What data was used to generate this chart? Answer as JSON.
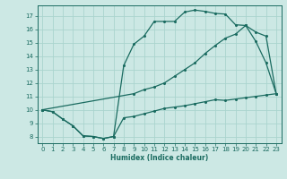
{
  "title": "",
  "xlabel": "Humidex (Indice chaleur)",
  "bg_color": "#cce8e4",
  "grid_color": "#aad4ce",
  "line_color": "#1a6b60",
  "xlim": [
    -0.5,
    23.5
  ],
  "ylim": [
    7.5,
    17.8
  ],
  "xticks": [
    0,
    1,
    2,
    3,
    4,
    5,
    6,
    7,
    8,
    9,
    10,
    11,
    12,
    13,
    14,
    15,
    16,
    17,
    18,
    19,
    20,
    21,
    22,
    23
  ],
  "yticks": [
    8,
    9,
    10,
    11,
    12,
    13,
    14,
    15,
    16,
    17
  ],
  "curve1_x": [
    0,
    1,
    2,
    3,
    4,
    5,
    6,
    7,
    8,
    9,
    10,
    11,
    12,
    13,
    14,
    15,
    16,
    17,
    18,
    19,
    20,
    21,
    22,
    23
  ],
  "curve1_y": [
    10.0,
    9.85,
    9.3,
    8.8,
    8.05,
    8.0,
    7.85,
    8.0,
    9.4,
    9.5,
    9.7,
    9.9,
    10.1,
    10.2,
    10.3,
    10.45,
    10.6,
    10.75,
    10.7,
    10.8,
    10.9,
    11.0,
    11.1,
    11.2
  ],
  "curve2_x": [
    0,
    1,
    2,
    3,
    4,
    5,
    6,
    7,
    8,
    9,
    10,
    11,
    12,
    13,
    14,
    15,
    16,
    17,
    18,
    19,
    20,
    21,
    22,
    23
  ],
  "curve2_y": [
    10.0,
    9.85,
    9.3,
    8.8,
    8.05,
    8.0,
    7.85,
    8.0,
    13.3,
    14.9,
    15.5,
    16.6,
    16.6,
    16.6,
    17.3,
    17.45,
    17.35,
    17.2,
    17.15,
    16.35,
    16.3,
    15.1,
    13.5,
    11.2
  ],
  "curve3_x": [
    0,
    9,
    10,
    11,
    12,
    13,
    14,
    15,
    16,
    17,
    18,
    19,
    20,
    21,
    22,
    23
  ],
  "curve3_y": [
    10.0,
    11.2,
    11.5,
    11.7,
    12.0,
    12.5,
    13.0,
    13.5,
    14.2,
    14.8,
    15.35,
    15.65,
    16.3,
    15.8,
    15.5,
    11.2
  ]
}
